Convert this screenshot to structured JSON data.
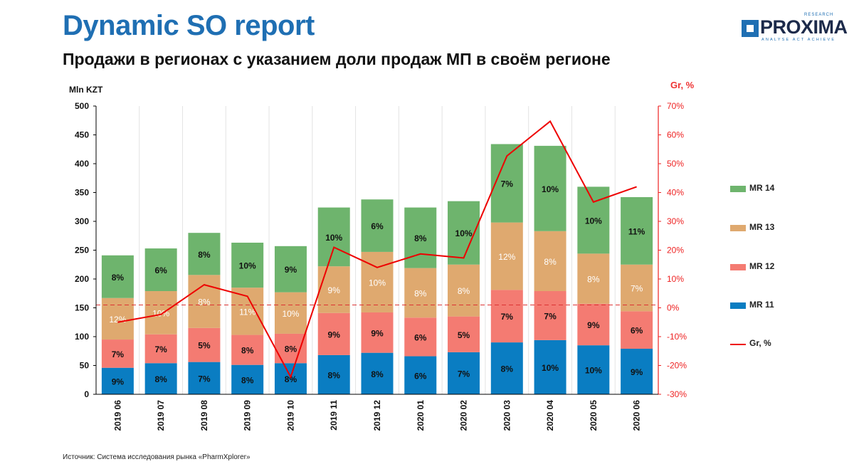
{
  "header": {
    "title": "Dynamic SO report",
    "subtitle": "Продажи в регионах с указанием доли продаж МП в своём регионе"
  },
  "logo": {
    "name": "PROXIMA",
    "research": "RESEARCH",
    "tagline": "ANALYSE ACT ACHIEVE"
  },
  "footer": {
    "source": "Источник: Система исследования рынка «PharmXplorer»"
  },
  "chart_data": {
    "type": "bar",
    "stacked": true,
    "categories": [
      "2019 06",
      "2019 07",
      "2019 08",
      "2019 09",
      "2019 10",
      "2019 11",
      "2019 12",
      "2020 01",
      "2020 02",
      "2020 03",
      "2020 04",
      "2020 05",
      "2020 06"
    ],
    "y_axis": {
      "label": "Mln KZT",
      "min": 0,
      "max": 500,
      "ticks": [
        "0",
        "50",
        "100",
        "150",
        "200",
        "250",
        "300",
        "350",
        "400",
        "450",
        "500"
      ]
    },
    "y2_axis": {
      "label": "Gr, %",
      "min": -30,
      "max": 70,
      "ticks": [
        "-30%",
        "-20%",
        "-10%",
        "0%",
        "10%",
        "20%",
        "30%",
        "40%",
        "50%",
        "60%",
        "70%"
      ]
    },
    "gridlines": "vertical",
    "series": [
      {
        "name": "MR 11",
        "color": "#0a7dc2",
        "label_color": "#111111",
        "values": [
          46,
          54,
          56,
          51,
          54,
          68,
          72,
          66,
          73,
          90,
          94,
          85,
          79
        ],
        "labels": [
          "9%",
          "8%",
          "7%",
          "8%",
          "8%",
          "8%",
          "8%",
          "6%",
          "7%",
          "8%",
          "10%",
          "10%",
          "9%"
        ]
      },
      {
        "name": "MR 12",
        "color": "#f47b72",
        "label_color": "#111111",
        "values": [
          49,
          50,
          59,
          52,
          51,
          73,
          70,
          67,
          62,
          91,
          85,
          72,
          65
        ],
        "labels": [
          "7%",
          "7%",
          "5%",
          "8%",
          "8%",
          "9%",
          "9%",
          "6%",
          "5%",
          "7%",
          "7%",
          "9%",
          "6%"
        ]
      },
      {
        "name": "MR 13",
        "color": "#dfa96f",
        "label_color": "#ffffff",
        "values": [
          72,
          75,
          92,
          82,
          72,
          81,
          105,
          86,
          90,
          117,
          104,
          87,
          81
        ],
        "labels": [
          "12%",
          "10%",
          "8%",
          "11%",
          "10%",
          "9%",
          "10%",
          "8%",
          "8%",
          "12%",
          "8%",
          "8%",
          "7%"
        ]
      },
      {
        "name": "MR 14",
        "color": "#6eb46d",
        "label_color": "#111111",
        "values": [
          74,
          74,
          73,
          78,
          80,
          102,
          91,
          105,
          110,
          136,
          148,
          116,
          117
        ],
        "labels": [
          "8%",
          "6%",
          "8%",
          "10%",
          "9%",
          "10%",
          "6%",
          "8%",
          "10%",
          "7%",
          "10%",
          "10%",
          "11%"
        ]
      }
    ],
    "line_series": {
      "name": "Gr, %",
      "color": "#ee0000",
      "axis": "y2",
      "values": [
        -5,
        -2.3,
        8,
        4,
        -24,
        21,
        14,
        18.7,
        17.3,
        52.7,
        64.7,
        36.7,
        42
      ]
    },
    "reference_line": {
      "axis": "y2",
      "value": 1,
      "style": "dashed",
      "color": "#dd3333"
    },
    "legend": {
      "position": "right",
      "order": [
        "MR 14",
        "MR 13",
        "MR 12",
        "MR 11",
        "Gr, %"
      ]
    }
  }
}
